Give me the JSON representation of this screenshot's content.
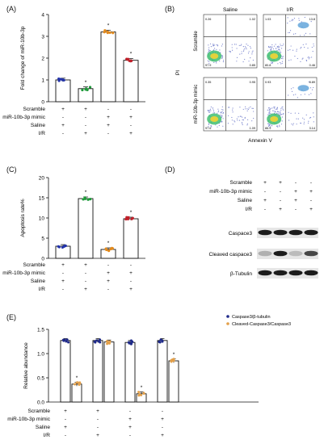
{
  "panel_labels": [
    "(A)",
    "(B)",
    "(C)",
    "(D)",
    "(E)"
  ],
  "colors": {
    "scramble_saline": "#2233aa",
    "mimic_saline": "#1e9a3a",
    "scramble_ir": "#e38a1c",
    "mimic_ir": "#c0202a",
    "apoptosis_scramble_ir": "#1e9a3a",
    "apoptosis_mimic_saline": "#e38a1c",
    "e_series1": "#1f2a8a",
    "e_series2": "#e3a04a"
  },
  "condition_rows": [
    {
      "label": "Scramble",
      "values": [
        "+",
        "+",
        "-",
        "-"
      ]
    },
    {
      "label": "miR-10b-3p mimic",
      "values": [
        "-",
        "-",
        "+",
        "+"
      ]
    },
    {
      "label": "Saline",
      "values": [
        "+",
        "-",
        "+",
        "-"
      ]
    },
    {
      "label": "I/R",
      "values": [
        "-",
        "+",
        "-",
        "+"
      ]
    }
  ],
  "chart_data": [
    {
      "panel": "A",
      "type": "bar",
      "ylabel": "Fold change of miR-10b-3p",
      "ylim": [
        0,
        4
      ],
      "yticks": [
        "0",
        "1",
        "2",
        "3",
        "4"
      ],
      "values": [
        1.0,
        0.6,
        3.2,
        1.9
      ],
      "markers": [
        "",
        "*",
        "*",
        "*"
      ]
    },
    {
      "panel": "C",
      "type": "bar",
      "ylabel": "Apoptosis rate%",
      "ylim": [
        0,
        20
      ],
      "yticks": [
        "0",
        "5",
        "10",
        "15",
        "20"
      ],
      "values": [
        3.0,
        14.8,
        2.2,
        9.8
      ],
      "markers": [
        "",
        "*",
        "*",
        "*"
      ]
    },
    {
      "panel": "E",
      "type": "bar",
      "ylabel": "Relative abundance",
      "ylim": [
        0,
        1.5
      ],
      "yticks": [
        "0.0",
        "0.5",
        "1.0",
        "1.5"
      ],
      "series": [
        {
          "name": "Caspase3/β-tubulin",
          "values": [
            1.27,
            1.27,
            1.23,
            1.27
          ]
        },
        {
          "name": "Cleaved-Caspase3/Caspase3",
          "values": [
            0.37,
            1.24,
            0.17,
            0.85
          ]
        }
      ],
      "markers": [
        "*",
        "",
        "*",
        "*"
      ],
      "legend": "top-right"
    }
  ],
  "flow": {
    "column_titles": [
      "Saline",
      "I/R"
    ],
    "row_labels": [
      "Scramble",
      "miR-10b-3p mimic"
    ],
    "x_label": "Annexin V",
    "y_label": "PI",
    "quadrants": [
      {
        "q1": "0.26",
        "q2": "1.02",
        "q3": "97.9",
        "q4": "0.85"
      },
      {
        "q1": "1.03",
        "q2": "13.8",
        "q3": "80.8",
        "q4": "0.46"
      },
      {
        "q1": "0.35",
        "q2": "0.95",
        "q3": "97.6",
        "q4": "1.09"
      },
      {
        "q1": "0.93",
        "q2": "8.89",
        "q3": "86.9",
        "q4": "3.14"
      }
    ]
  },
  "western": {
    "conditions": [
      {
        "label": "Scramble",
        "values": [
          "+",
          "+",
          "-",
          "-"
        ]
      },
      {
        "label": "miR-10b-3p mimic",
        "values": [
          "-",
          "-",
          "+",
          "+"
        ]
      },
      {
        "label": "Saline",
        "values": [
          "+",
          "-",
          "+",
          "-"
        ]
      },
      {
        "label": "I/R",
        "values": [
          "-",
          "+",
          "-",
          "+"
        ]
      }
    ],
    "bands": [
      "Caspace3",
      "Cleaved caspace3",
      "β-Tubulin"
    ]
  }
}
